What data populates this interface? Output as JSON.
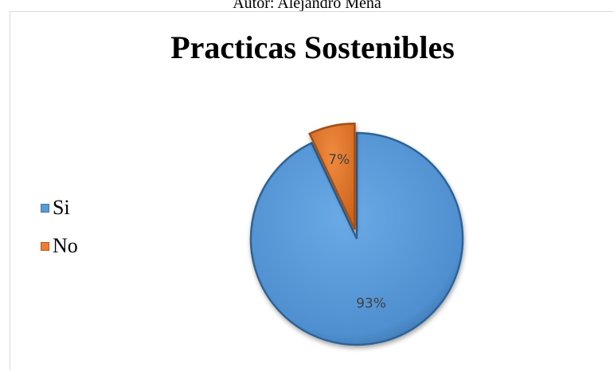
{
  "caption": "Autor: Alejandro Mena",
  "chart_data": {
    "type": "pie",
    "title": "Practicas Sostenibles",
    "legend_position": "left",
    "slices": [
      {
        "label": "Si",
        "value": 93,
        "display": "93%",
        "color": "#5b9bd5",
        "exploded": false
      },
      {
        "label": "No",
        "value": 7,
        "display": "7%",
        "color": "#ed7d31",
        "exploded": true
      }
    ]
  }
}
